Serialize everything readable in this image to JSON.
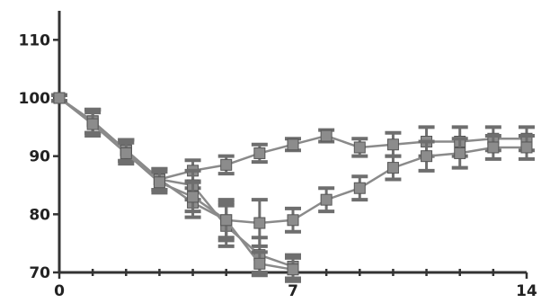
{
  "chart_data": {
    "type": "line",
    "title": "",
    "xlabel": "",
    "ylabel": "",
    "xlim": [
      0,
      14
    ],
    "ylim": [
      70,
      115
    ],
    "x_ticks": [
      0,
      7,
      14
    ],
    "x_tick_labels": [
      "0",
      "7",
      "14"
    ],
    "x_minor_ticks": [
      1,
      2,
      3,
      4,
      5,
      6,
      8,
      9,
      10,
      11,
      12,
      13
    ],
    "y_ticks": [
      70,
      80,
      90,
      100,
      110
    ],
    "y_tick_labels": [
      "70",
      "80",
      "90",
      "100",
      "110"
    ],
    "grid": false,
    "colors": {
      "line": "#8a8a8a",
      "marker": "#8c8c8c",
      "axis": "#333333"
    },
    "series": [
      {
        "x": [
          0,
          1,
          2,
          3,
          4,
          5,
          6,
          7,
          8,
          9,
          10,
          11,
          12,
          13,
          14
        ],
        "y": [
          100,
          96,
          91,
          86,
          87.5,
          88.5,
          90.5,
          92,
          93.5,
          91.5,
          92,
          92.5,
          92.5,
          93,
          93
        ],
        "err": [
          0.5,
          2,
          1.8,
          1.8,
          1.8,
          1.5,
          1.5,
          1,
          1,
          1.5,
          2,
          2.5,
          2.5,
          2,
          2
        ]
      },
      {
        "x": [
          0,
          1,
          2,
          3,
          4,
          5,
          6,
          7,
          8,
          9,
          10,
          11,
          12,
          13,
          14
        ],
        "y": [
          100,
          96,
          91,
          86,
          82,
          79,
          78.5,
          79,
          82.5,
          84.5,
          88,
          90,
          90.5,
          91.5,
          91.5
        ],
        "err": [
          0.5,
          2,
          1.8,
          1.8,
          2.5,
          3.5,
          4,
          2,
          2,
          2,
          2,
          2.5,
          2.5,
          2,
          2
        ]
      },
      {
        "x": [
          0,
          1,
          2,
          3,
          4,
          5,
          6,
          7
        ],
        "y": [
          100,
          96,
          91,
          86,
          85,
          78,
          73,
          71
        ],
        "err": [
          0.5,
          2,
          1.8,
          1.8,
          2.5,
          3.5,
          3,
          2
        ]
      },
      {
        "x": [
          0,
          1,
          2,
          3,
          4,
          5,
          6,
          7
        ],
        "y": [
          100,
          95.5,
          90.5,
          85.5,
          83,
          79,
          71.5,
          70.5
        ],
        "err": [
          0.5,
          2,
          1.8,
          1.8,
          2.5,
          3,
          2,
          2
        ]
      }
    ]
  }
}
